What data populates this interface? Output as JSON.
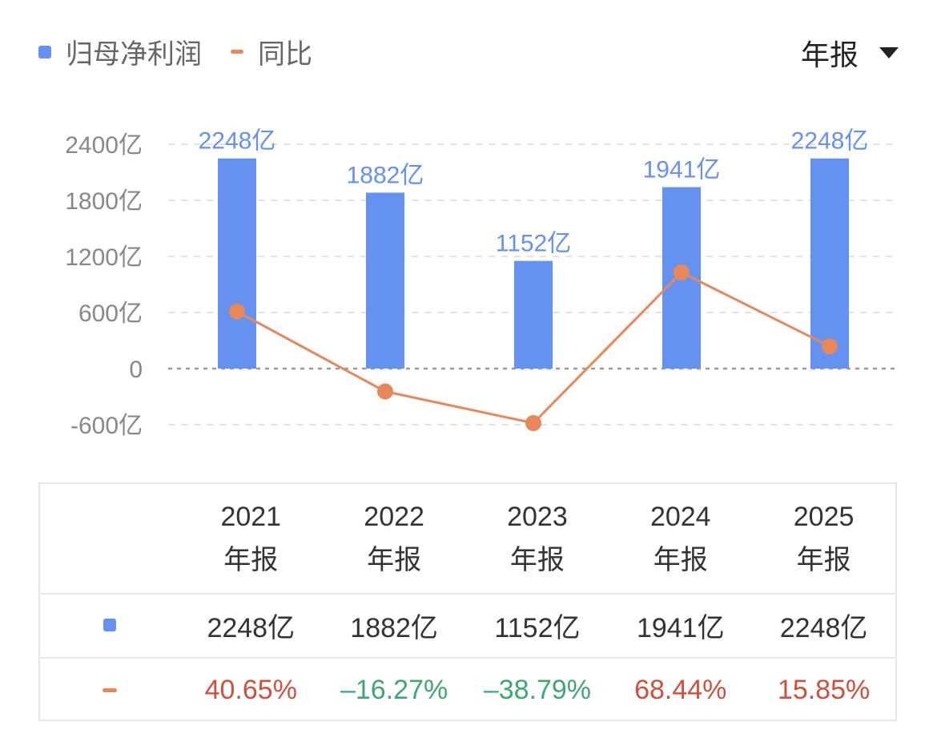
{
  "legend": {
    "net_profit_label": "归母净利润",
    "yoy_label": "同比",
    "net_profit_color": "#6591f0",
    "yoy_color": "#e8885a"
  },
  "period_selector": {
    "label": "年报",
    "icon": "dropdown-triangle-icon"
  },
  "chart_data": {
    "type": "bar",
    "categories": [
      "2021",
      "2022",
      "2023",
      "2024",
      "2025"
    ],
    "series": [
      {
        "name": "归母净利润",
        "type": "bar",
        "values": [
          2248,
          1882,
          1152,
          1941,
          2248
        ],
        "labels": [
          "2248亿",
          "1882亿",
          "1152亿",
          "1941亿",
          "2248亿"
        ],
        "color": "#6591f0"
      },
      {
        "name": "同比",
        "type": "line",
        "values": [
          40.65,
          -16.27,
          -38.79,
          68.44,
          15.85
        ],
        "color": "#e8885a"
      }
    ],
    "y_ticks": [
      "2400亿",
      "1800亿",
      "1200亿",
      "600亿",
      "0",
      "-600亿"
    ],
    "y_tick_values": [
      2400,
      1800,
      1200,
      600,
      0,
      -600
    ],
    "ylim": [
      -600,
      2400
    ],
    "grid": true
  },
  "table": {
    "columns": [
      {
        "year": "2021",
        "period": "年报"
      },
      {
        "year": "2022",
        "period": "年报"
      },
      {
        "year": "2023",
        "period": "年报"
      },
      {
        "year": "2024",
        "period": "年报"
      },
      {
        "year": "2025",
        "period": "年报"
      }
    ],
    "profit_row": [
      "2248亿",
      "1882亿",
      "1152亿",
      "1941亿",
      "2248亿"
    ],
    "yoy_row": [
      "40.65%",
      "–16.27%",
      "–38.79%",
      "68.44%",
      "15.85%"
    ],
    "positive_color": "#d0503d",
    "negative_color": "#3fa871"
  }
}
